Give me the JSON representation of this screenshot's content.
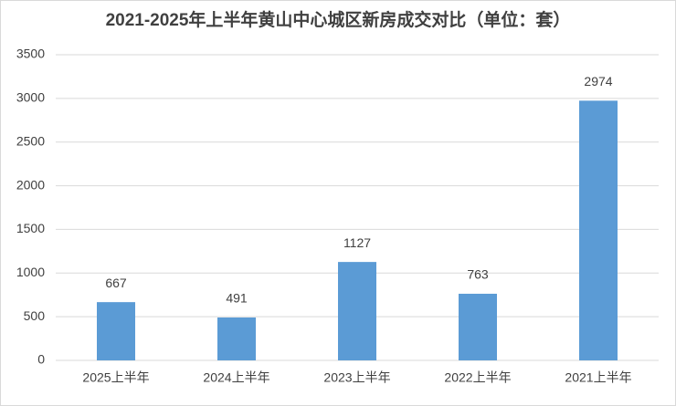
{
  "chart_data": {
    "type": "bar",
    "title": "2021-2025年上半年黄山中心城区新房成交对比（单位：套）",
    "categories": [
      "2025上半年",
      "2024上半年",
      "2023上半年",
      "2022上半年",
      "2021上半年"
    ],
    "values": [
      667,
      491,
      1127,
      763,
      2974
    ],
    "color": "#5b9bd5",
    "ylim": [
      0,
      3500
    ],
    "yticks": [
      0,
      500,
      1000,
      1500,
      2000,
      2500,
      3000,
      3500
    ],
    "grid": true
  }
}
